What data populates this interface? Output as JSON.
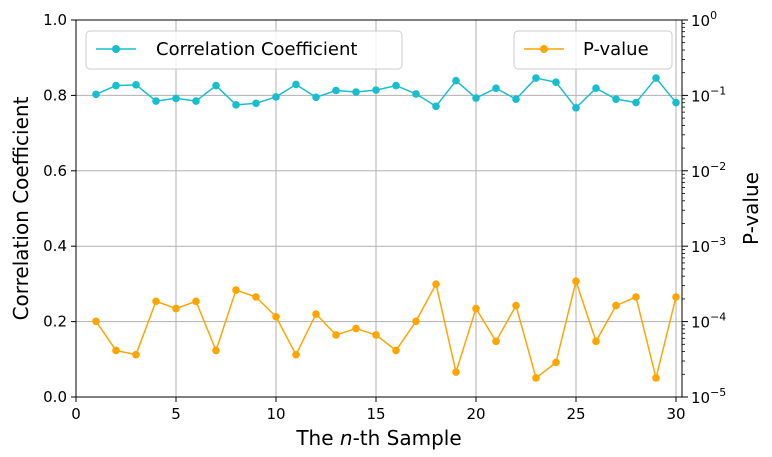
{
  "chart_data": {
    "type": "line",
    "x": [
      1,
      2,
      3,
      4,
      5,
      6,
      7,
      8,
      9,
      10,
      11,
      12,
      13,
      14,
      15,
      16,
      17,
      18,
      19,
      20,
      21,
      22,
      23,
      24,
      25,
      26,
      27,
      28,
      29,
      30
    ],
    "xlabel_prefix": "The ",
    "xlabel_italic": "n",
    "xlabel_suffix": "-th Sample",
    "ylabel_left": "Correlation Coefficient",
    "ylabel_right": "P-value",
    "xlim": [
      0,
      30.3
    ],
    "ylim_left": [
      0,
      1.0
    ],
    "ylim_right": [
      1e-05,
      1
    ],
    "right_scale": "log",
    "grid": true,
    "x_ticks": [
      "0",
      "5",
      "10",
      "15",
      "20",
      "25",
      "30"
    ],
    "y_left_ticks": [
      "0.0",
      "0.2",
      "0.4",
      "0.6",
      "0.8",
      "1.0"
    ],
    "y_right_ticks": [
      {
        "base": "10",
        "exp": "0"
      },
      {
        "base": "10",
        "exp": "−1"
      },
      {
        "base": "10",
        "exp": "−2"
      },
      {
        "base": "10",
        "exp": "−3"
      },
      {
        "base": "10",
        "exp": "−4"
      },
      {
        "base": "10",
        "exp": "−5"
      }
    ],
    "series": [
      {
        "name": "Correlation Coefficient",
        "axis": "left",
        "color": "#17becf",
        "legend_position": "upper-left",
        "values": [
          0.803,
          0.826,
          0.828,
          0.785,
          0.792,
          0.785,
          0.826,
          0.775,
          0.779,
          0.796,
          0.829,
          0.795,
          0.813,
          0.809,
          0.814,
          0.826,
          0.804,
          0.771,
          0.839,
          0.793,
          0.819,
          0.79,
          0.846,
          0.835,
          0.767,
          0.819,
          0.79,
          0.781,
          0.846,
          0.781
        ]
      },
      {
        "name": "P-value",
        "axis": "right",
        "color": "#ffa500",
        "legend_position": "upper-right",
        "values": [
          0.000101,
          4.14e-05,
          3.64e-05,
          0.000186,
          0.000149,
          0.000186,
          4.14e-05,
          0.000262,
          0.000212,
          0.000116,
          3.64e-05,
          0.000126,
          6.65e-05,
          8.09e-05,
          6.65e-05,
          4.14e-05,
          0.000101,
          0.000314,
          2.14e-05,
          0.000149,
          5.47e-05,
          0.000163,
          1.79e-05,
          2.87e-05,
          0.000344,
          5.47e-05,
          0.000163,
          0.000212,
          1.79e-05,
          0.000212
        ]
      }
    ]
  }
}
